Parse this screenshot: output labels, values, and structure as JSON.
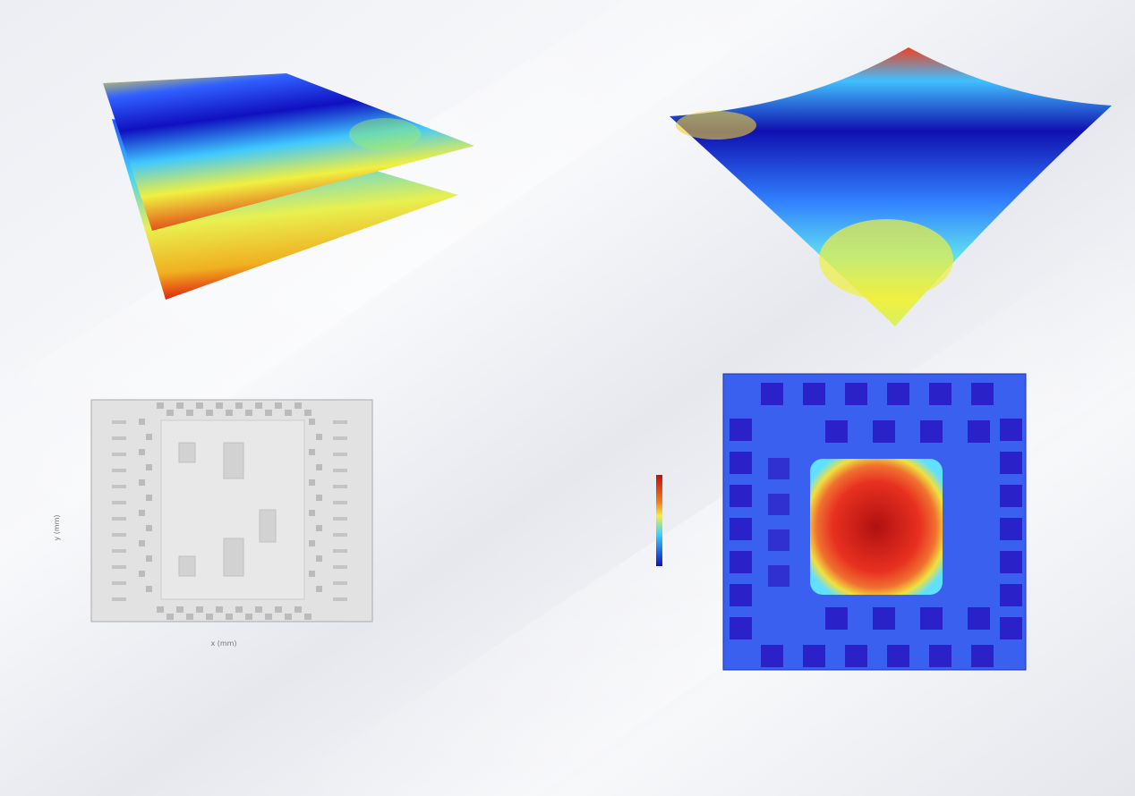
{
  "figure": {
    "layout_plot": {
      "x_label": "x (mm)",
      "y_label": "y (mm)"
    }
  }
}
